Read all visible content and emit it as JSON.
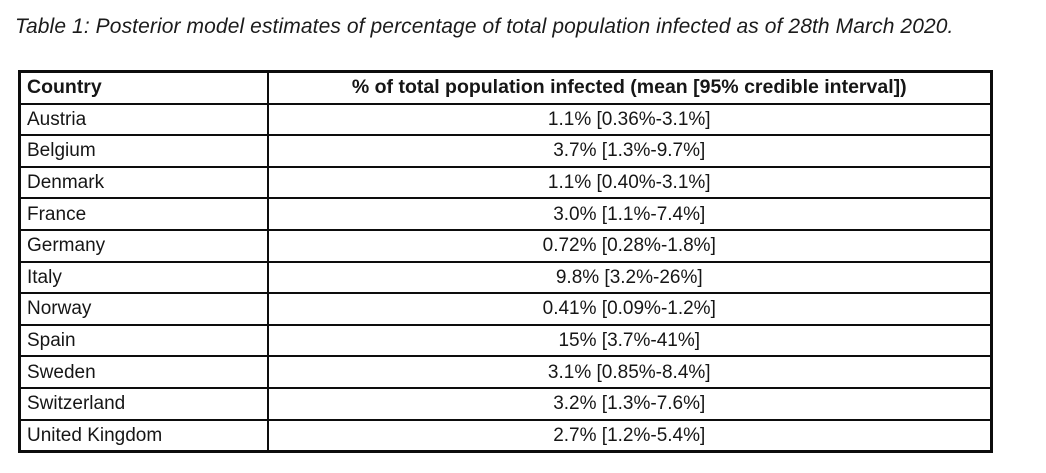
{
  "caption": "Table 1: Posterior model estimates of percentage of total population infected as of 28th March 2020.",
  "table": {
    "columns": [
      "Country",
      "% of total population infected (mean [95% credible interval])"
    ],
    "rows": [
      [
        "Austria",
        "1.1% [0.36%-3.1%]"
      ],
      [
        "Belgium",
        "3.7% [1.3%-9.7%]"
      ],
      [
        "Denmark",
        "1.1% [0.40%-3.1%]"
      ],
      [
        "France",
        "3.0% [1.1%-7.4%]"
      ],
      [
        "Germany",
        "0.72% [0.28%-1.8%]"
      ],
      [
        "Italy",
        "9.8% [3.2%-26%]"
      ],
      [
        "Norway",
        "0.41% [0.09%-1.2%]"
      ],
      [
        "Spain",
        "15% [3.7%-41%]"
      ],
      [
        "Sweden",
        "3.1% [0.85%-8.4%]"
      ],
      [
        "Switzerland",
        "3.2% [1.3%-7.6%]"
      ],
      [
        "United Kingdom",
        "2.7% [1.2%-5.4%]"
      ]
    ]
  },
  "chart_data": {
    "type": "table",
    "title": "Table 1: Posterior model estimates of percentage of total population infected as of 28th March 2020.",
    "columns": [
      "Country",
      "% of total population infected (mean [95% credible interval])"
    ],
    "countries": [
      "Austria",
      "Belgium",
      "Denmark",
      "France",
      "Germany",
      "Italy",
      "Norway",
      "Spain",
      "Sweden",
      "Switzerland",
      "United Kingdom"
    ],
    "mean_percent_infected": [
      1.1,
      3.7,
      1.1,
      3.0,
      0.72,
      9.8,
      0.41,
      15,
      3.1,
      3.2,
      2.7
    ],
    "ci95_low_percent": [
      0.36,
      1.3,
      0.4,
      1.1,
      0.28,
      3.2,
      0.09,
      3.7,
      0.85,
      1.3,
      1.2
    ],
    "ci95_high_percent": [
      3.1,
      9.7,
      3.1,
      7.4,
      1.8,
      26,
      1.2,
      41,
      8.4,
      7.6,
      5.4
    ]
  },
  "colors": {
    "page_background": "#ffffff",
    "text": "#1b1b1b",
    "table_border": "#0d0d0d"
  }
}
